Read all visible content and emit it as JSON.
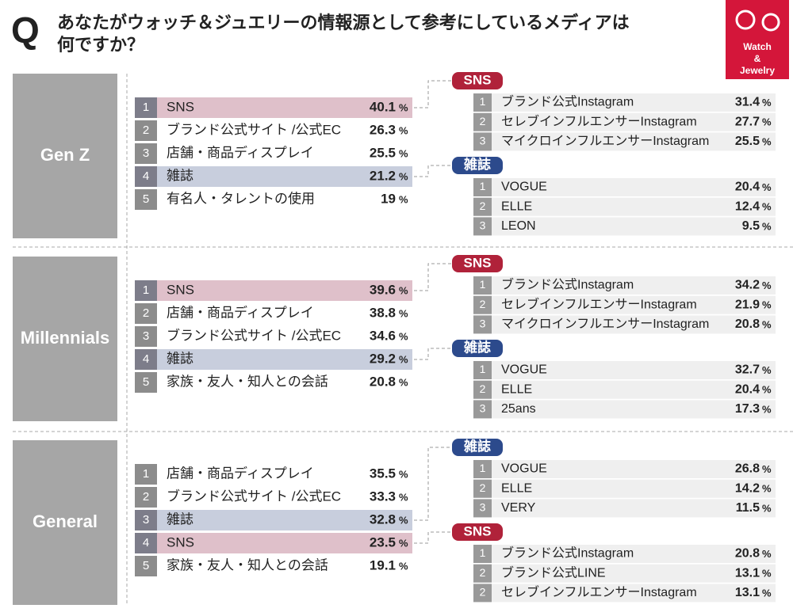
{
  "header": {
    "q": "Q",
    "title": [
      "あなたがウォッチ＆ジュエリーの情報源として参考にしているメディアは",
      "何ですか？"
    ],
    "badge": [
      "Watch",
      "&",
      "Jewelry"
    ]
  },
  "unit": "%",
  "groups": [
    {
      "name": "Gen Z",
      "items": [
        {
          "rank": 1,
          "label": "SNS",
          "value": 40.1,
          "color": "#dfc0ca"
        },
        {
          "rank": 2,
          "label": "ブランド公式サイト /公式EC",
          "value": 26.3
        },
        {
          "rank": 3,
          "label": "店舗・商品ディスプレイ",
          "value": 25.5
        },
        {
          "rank": 4,
          "label": "雑誌",
          "value": 21.2,
          "color": "#c8cedd"
        },
        {
          "rank": 5,
          "label": "有名人・タレントの使用",
          "value": 19.0
        }
      ],
      "details": [
        {
          "tag": "SNS",
          "color": "#b0223a",
          "items": [
            {
              "rank": 1,
              "label": "ブランド公式Instagram",
              "value": 31.4
            },
            {
              "rank": 2,
              "label": "セレブインフルエンサーInstagram",
              "value": 27.7
            },
            {
              "rank": 3,
              "label": "マイクロインフルエンサーInstagram",
              "value": 25.5
            }
          ]
        },
        {
          "tag": "雑誌",
          "color": "#2c4a8c",
          "items": [
            {
              "rank": 1,
              "label": "VOGUE",
              "value": 20.4
            },
            {
              "rank": 2,
              "label": "ELLE",
              "value": 12.4
            },
            {
              "rank": 3,
              "label": "LEON",
              "value": 9.5
            }
          ]
        }
      ]
    },
    {
      "name": "Millennials",
      "items": [
        {
          "rank": 1,
          "label": "SNS",
          "value": 39.6,
          "color": "#dfc0ca"
        },
        {
          "rank": 2,
          "label": "店舗・商品ディスプレイ",
          "value": 38.8
        },
        {
          "rank": 3,
          "label": "ブランド公式サイト /公式EC",
          "value": 34.6
        },
        {
          "rank": 4,
          "label": "雑誌",
          "value": 29.2,
          "color": "#c8cedd"
        },
        {
          "rank": 5,
          "label": "家族・友人・知人との会話",
          "value": 20.8
        }
      ],
      "details": [
        {
          "tag": "SNS",
          "color": "#b0223a",
          "items": [
            {
              "rank": 1,
              "label": "ブランド公式Instagram",
              "value": 34.2
            },
            {
              "rank": 2,
              "label": "セレブインフルエンサーInstagram",
              "value": 21.9
            },
            {
              "rank": 3,
              "label": "マイクロインフルエンサーInstagram",
              "value": 20.8
            }
          ]
        },
        {
          "tag": "雑誌",
          "color": "#2c4a8c",
          "items": [
            {
              "rank": 1,
              "label": "VOGUE",
              "value": 32.7
            },
            {
              "rank": 2,
              "label": "ELLE",
              "value": 20.4
            },
            {
              "rank": 3,
              "label": "25ans",
              "value": 17.3
            }
          ]
        }
      ]
    },
    {
      "name": "General",
      "items": [
        {
          "rank": 1,
          "label": "店舗・商品ディスプレイ",
          "value": 35.5
        },
        {
          "rank": 2,
          "label": "ブランド公式サイト /公式EC",
          "value": 33.3
        },
        {
          "rank": 3,
          "label": "雑誌",
          "value": 32.8,
          "color": "#c8cedd"
        },
        {
          "rank": 4,
          "label": "SNS",
          "value": 23.5,
          "color": "#dfc0ca"
        },
        {
          "rank": 5,
          "label": "家族・友人・知人との会話",
          "value": 19.1
        }
      ],
      "details": [
        {
          "tag": "雑誌",
          "color": "#2c4a8c",
          "items": [
            {
              "rank": 1,
              "label": "VOGUE",
              "value": 26.8
            },
            {
              "rank": 2,
              "label": "ELLE",
              "value": 14.2
            },
            {
              "rank": 3,
              "label": "VERY",
              "value": 11.5
            }
          ]
        },
        {
          "tag": "SNS",
          "color": "#b0223a",
          "items": [
            {
              "rank": 1,
              "label": "ブランド公式Instagram",
              "value": 20.8
            },
            {
              "rank": 2,
              "label": "ブランド公式LINE",
              "value": 13.1
            },
            {
              "rank": 2,
              "label": "セレブインフルエンサーInstagram",
              "value": 13.1
            }
          ]
        }
      ]
    }
  ]
}
